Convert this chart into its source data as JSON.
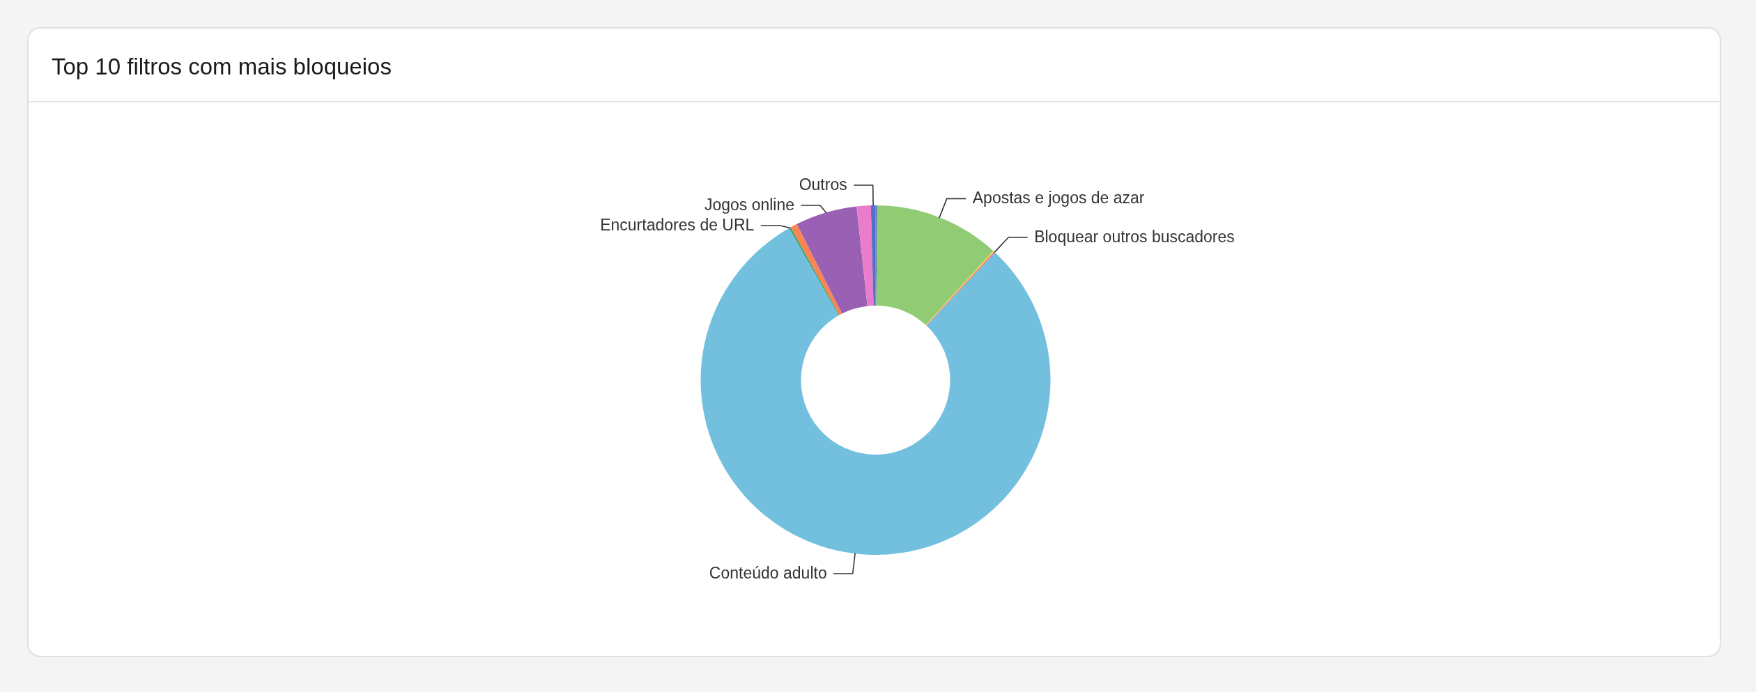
{
  "chart_data": {
    "type": "donut",
    "title": "Top 10 filtros com mais bloqueios",
    "categories": [
      null,
      "Apostas e jogos de azar",
      null,
      "Bloquear outros buscadores",
      "Conteúdo adulto",
      "Encurtadores de URL",
      null,
      "Jogos online",
      null,
      "Outros"
    ],
    "values": [
      0.15,
      11.6,
      0.12,
      0.1,
      79.8,
      0.17,
      0.63,
      5.7,
      1.3,
      0.43
    ],
    "colors": [
      "#5470c6",
      "#91cc75",
      "#fac858",
      "#ee6666",
      "#73c0de",
      "#3ba272",
      "#fc8452",
      "#9a60b4",
      "#ea7ccc",
      "#5470c6"
    ]
  }
}
